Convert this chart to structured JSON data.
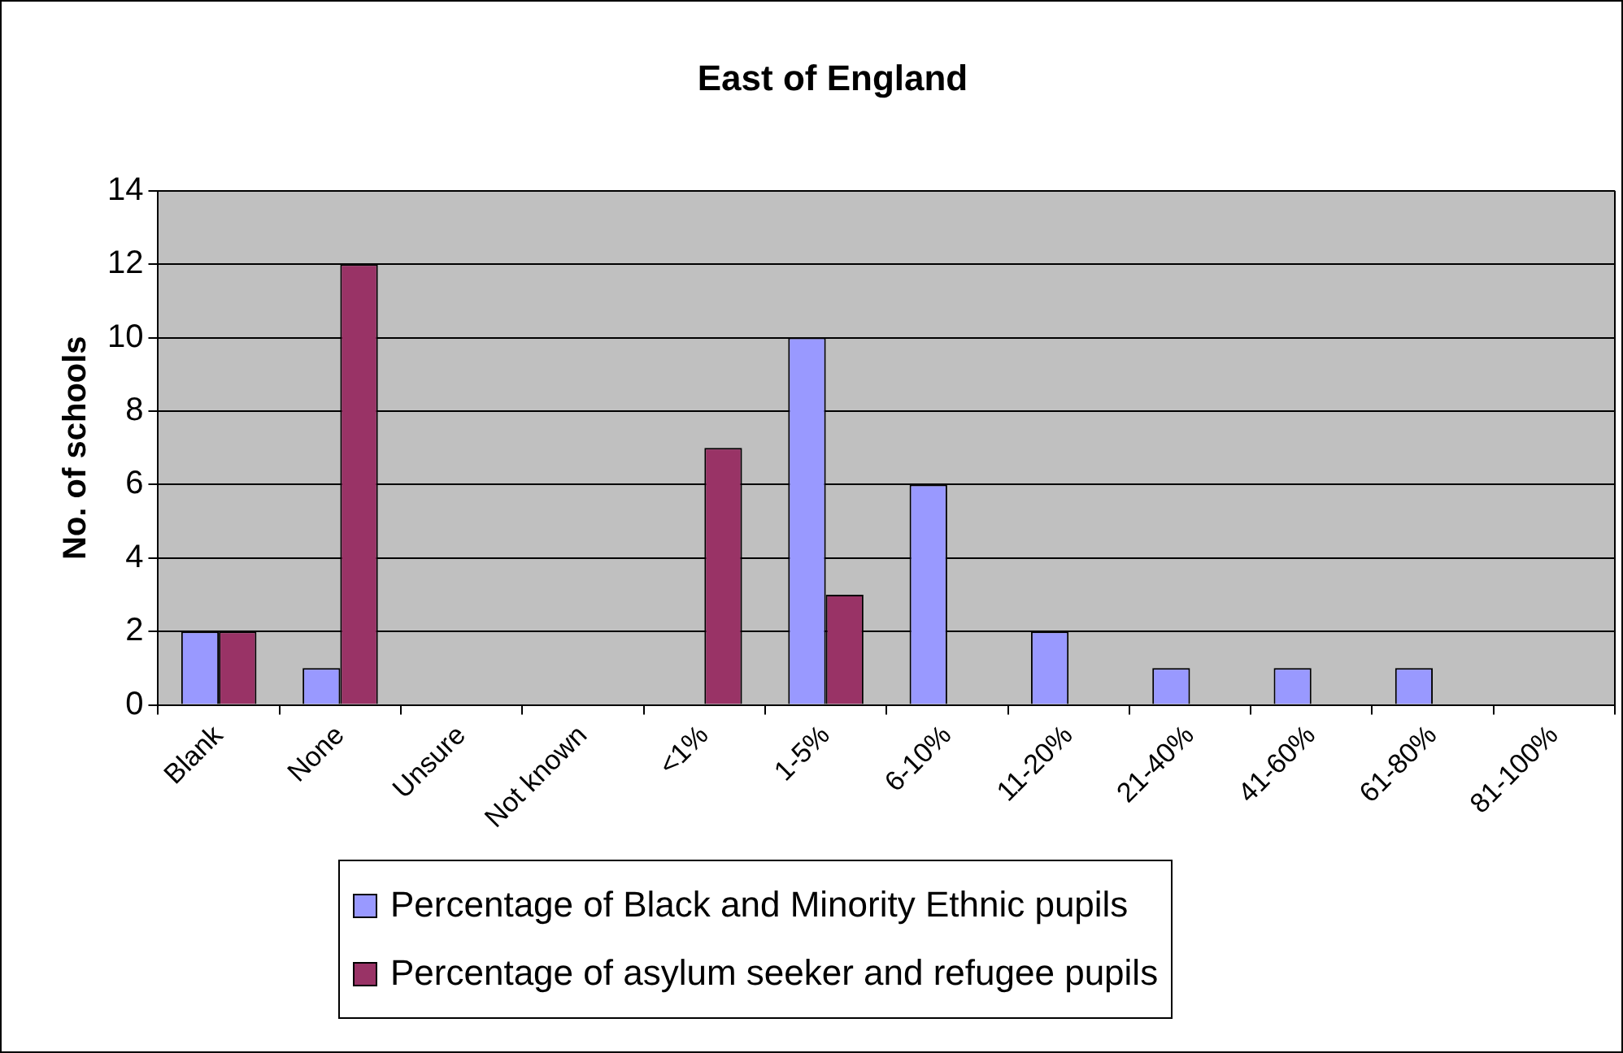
{
  "chart_data": {
    "type": "bar",
    "title": "East of England",
    "ylabel": "No. of schools",
    "categories": [
      "Blank",
      "None",
      "Unsure",
      "Not known",
      "<1%",
      "1-5%",
      "6-10%",
      "11-20%",
      "21-40%",
      "41-60%",
      "61-80%",
      "81-100%"
    ],
    "series": [
      {
        "name": "Percentage of Black and Minority Ethnic pupils",
        "color": "#9999ff",
        "values": [
          2,
          1,
          0,
          0,
          0,
          10,
          6,
          2,
          1,
          1,
          1,
          0
        ]
      },
      {
        "name": "Percentage of asylum seeker and refugee pupils",
        "color": "#993366",
        "values": [
          2,
          12,
          0,
          0,
          7,
          3,
          0,
          0,
          0,
          0,
          0,
          0
        ]
      }
    ],
    "ylim": [
      0,
      14
    ],
    "yticks": [
      0,
      2,
      4,
      6,
      8,
      10,
      12,
      14
    ],
    "grid": "y",
    "legend": "bottom"
  }
}
